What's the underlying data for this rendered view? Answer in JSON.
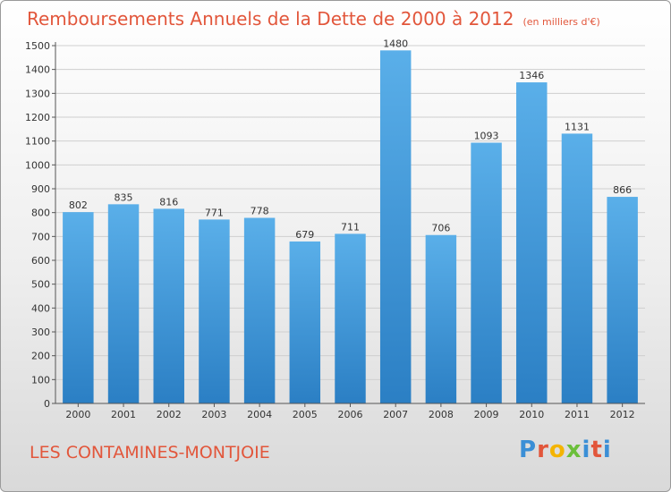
{
  "title": "Remboursements Annuels de la Dette de 2000 à 2012",
  "unit": "(en milliers d'€)",
  "commune": "LES CONTAMINES-MONTJOIE",
  "logo": "Proxiti",
  "colors": {
    "bar_top": "#5aafe9",
    "bar_bottom": "#2b7fc4",
    "title": "#e2563b"
  },
  "chart_data": {
    "type": "bar",
    "title": "Remboursements Annuels de la Dette de 2000 à 2012",
    "xlabel": "",
    "ylabel": "",
    "categories": [
      "2000",
      "2001",
      "2002",
      "2003",
      "2004",
      "2005",
      "2006",
      "2007",
      "2008",
      "2009",
      "2010",
      "2011",
      "2012"
    ],
    "values": [
      802,
      835,
      816,
      771,
      778,
      679,
      711,
      1480,
      706,
      1093,
      1346,
      1131,
      866
    ],
    "ylim": [
      0,
      1500
    ],
    "yticks": [
      0,
      100,
      200,
      300,
      400,
      500,
      600,
      700,
      800,
      900,
      1000,
      1100,
      1200,
      1300,
      1400,
      1500
    ],
    "grid": true,
    "legend": "none"
  }
}
